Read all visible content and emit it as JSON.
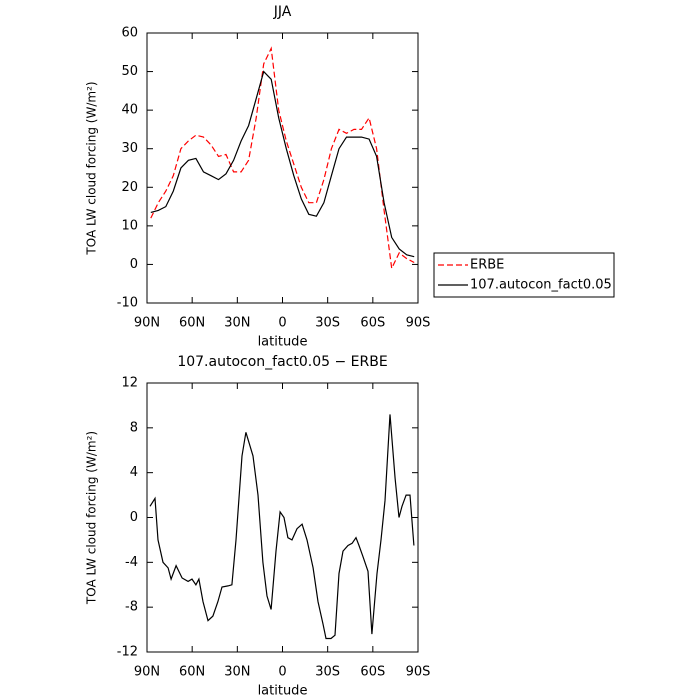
{
  "chart_data": [
    {
      "type": "line",
      "title": "JJA",
      "x_label": "latitude",
      "y_label": "TOA LW cloud forcing (W/m²)",
      "x": [
        87.5,
        82.5,
        77.5,
        72.5,
        67.5,
        62.5,
        57.5,
        52.5,
        47.5,
        42.5,
        37.5,
        32.5,
        27.5,
        22.5,
        17.5,
        12.5,
        7.5,
        2.5,
        -2.5,
        -7.5,
        -12.5,
        -17.5,
        -22.5,
        -27.5,
        -32.5,
        -37.5,
        -42.5,
        -47.5,
        -52.5,
        -57.5,
        -62.5,
        -67.5,
        -72.5,
        -77.5,
        -82.5,
        -87.5
      ],
      "series": [
        {
          "name": "ERBE",
          "color": "#ff0000",
          "line_style": "dashed",
          "values": [
            12,
            16,
            19,
            23,
            30,
            32,
            33.5,
            33,
            31,
            28,
            28.5,
            24,
            24,
            27,
            38,
            52,
            56,
            40,
            32,
            26,
            20,
            16,
            16,
            22,
            30,
            35,
            34,
            35,
            35,
            38,
            30,
            14,
            -1,
            3,
            1.5,
            0.5
          ]
        },
        {
          "name": "107.autocon_fact0.05",
          "color": "#000000",
          "line_style": "solid",
          "values": [
            13.5,
            14,
            15,
            19,
            25,
            27,
            27.5,
            24,
            23,
            22,
            23.5,
            27,
            32,
            36,
            43,
            50,
            48,
            38,
            30,
            23,
            17,
            13,
            12.5,
            16,
            23,
            30,
            33,
            33,
            33,
            32.5,
            28,
            16,
            7,
            4,
            2.5,
            2
          ]
        }
      ],
      "xlim": [
        90,
        -90
      ],
      "xticks": [
        {
          "value": 90,
          "label": "90N"
        },
        {
          "value": 60,
          "label": "60N"
        },
        {
          "value": 30,
          "label": "30N"
        },
        0,
        {
          "value": -30,
          "label": "30S"
        },
        {
          "value": -60,
          "label": "60S"
        },
        {
          "value": -90,
          "label": "90S"
        }
      ],
      "ylim": [
        -10,
        60
      ],
      "yticks": [
        -10,
        0,
        10,
        20,
        30,
        40,
        50,
        60
      ],
      "legend": "right"
    },
    {
      "type": "line",
      "title": "107.autocon_fact0.05 − ERBE",
      "x_label": "latitude",
      "y_label": "TOA LW cloud forcing (W/m²)",
      "x": [
        88,
        84.7,
        82.7,
        79.4,
        76,
        74,
        70.7,
        66.7,
        62.7,
        60.1,
        57.5,
        55.5,
        52.8,
        49.5,
        46.2,
        42.9,
        40.2,
        36.2,
        33.6,
        30.9,
        26.9,
        24.3,
        19.6,
        16.3,
        13,
        10.3,
        7.6,
        4.3,
        1.6,
        -1,
        -3.6,
        -6.3,
        -9.6,
        -13,
        -16.3,
        -20.3,
        -23.6,
        -26.9,
        -28.9,
        -32.2,
        -34.9,
        -37.5,
        -40.2,
        -43.5,
        -46.2,
        -48.8,
        -50.8,
        -53.5,
        -56.8,
        -59.4,
        -62.8,
        -65.4,
        -68.1,
        -71.4,
        -74.8,
        -77.4,
        -79.4,
        -82.1,
        -84.7,
        -87.3
      ],
      "values": [
        1,
        1.7,
        -2,
        -4,
        -4.5,
        -5.5,
        -4.3,
        -5.4,
        -5.7,
        -5.5,
        -6,
        -5.5,
        -7.5,
        -9.2,
        -8.8,
        -7.5,
        -6.2,
        -6.1,
        -6,
        -2,
        5.5,
        7.6,
        5.5,
        2,
        -4,
        -7,
        -8.2,
        -3,
        0.5,
        0,
        -1.8,
        -2,
        -1,
        -0.6,
        -2,
        -4.5,
        -7.5,
        -9.5,
        -10.8,
        -10.8,
        -10.5,
        -5,
        -3,
        -2.5,
        -2.3,
        -1.8,
        -2.5,
        -3.5,
        -4.8,
        -10.4,
        -5,
        -2,
        1.5,
        9.2,
        3.5,
        0,
        1,
        2,
        2,
        -2.5
      ],
      "color": "#000000",
      "xlim": [
        90,
        -90
      ],
      "xticks": [
        {
          "value": 90,
          "label": "90N"
        },
        {
          "value": 60,
          "label": "60N"
        },
        {
          "value": 30,
          "label": "30N"
        },
        0,
        {
          "value": -30,
          "label": "30S"
        },
        {
          "value": -60,
          "label": "60S"
        },
        {
          "value": -90,
          "label": "90S"
        }
      ],
      "ylim": [
        -12,
        12
      ],
      "yticks": [
        -12,
        -8,
        -4,
        0,
        4,
        8,
        12
      ]
    }
  ]
}
